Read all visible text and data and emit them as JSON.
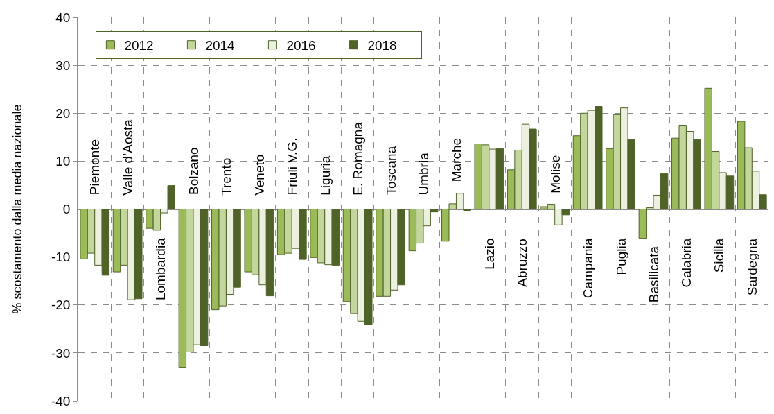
{
  "chart_data": {
    "type": "bar",
    "ylabel": "% scostamento dalla media nazionale",
    "categories": [
      "Piemonte",
      "Valle d’Aosta",
      "Lombardia",
      "Bolzano",
      "Trento",
      "Veneto",
      "Friuli V.G.",
      "Liguria",
      "E. Romagna",
      "Toscana",
      "Umbria",
      "Marche",
      "Lazio",
      "Abruzzo",
      "Molise",
      "Campania",
      "Puglia",
      "Basilicata",
      "Calabria",
      "Sicilia",
      "Sardegna"
    ],
    "series": [
      {
        "name": "2012",
        "color": "#9bbb59",
        "values": [
          -10.4,
          -13.1,
          -4.0,
          -33.0,
          -21.0,
          -13.1,
          -9.5,
          -10.1,
          -19.3,
          -18.2,
          -8.7,
          -6.7,
          13.6,
          8.2,
          0.5,
          15.3,
          12.6,
          -6.1,
          14.8,
          25.2,
          18.3
        ]
      },
      {
        "name": "2014",
        "color": "#c3d69b",
        "values": [
          -9.2,
          -11.7,
          -4.4,
          -29.8,
          -20.2,
          -13.7,
          -9.2,
          -11.2,
          -21.8,
          -18.2,
          -7.1,
          1.1,
          13.4,
          12.3,
          1.0,
          20.0,
          19.7,
          0.3,
          17.5,
          12.0,
          12.8
        ]
      },
      {
        "name": "2016",
        "color": "#ebf1de",
        "values": [
          -11.7,
          -18.9,
          -0.8,
          -28.3,
          -17.8,
          -15.8,
          -8.2,
          -11.6,
          -23.4,
          -16.9,
          -3.5,
          3.3,
          12.5,
          17.7,
          -3.3,
          20.6,
          21.1,
          2.9,
          16.2,
          7.6,
          7.9
        ]
      },
      {
        "name": "2018",
        "color": "#4f6228",
        "values": [
          -13.8,
          -18.7,
          4.9,
          -28.5,
          -16.3,
          -18.1,
          -10.5,
          -11.7,
          -24.1,
          -15.8,
          -0.6,
          -0.3,
          12.6,
          16.7,
          -1.2,
          21.4,
          14.5,
          7.4,
          14.5,
          6.9,
          3.0
        ]
      }
    ],
    "ylim": [
      -40,
      40
    ],
    "yticks": [
      -40,
      -30,
      -20,
      -10,
      0,
      10,
      20,
      30,
      40
    ],
    "grid": true,
    "legend": "top left"
  }
}
